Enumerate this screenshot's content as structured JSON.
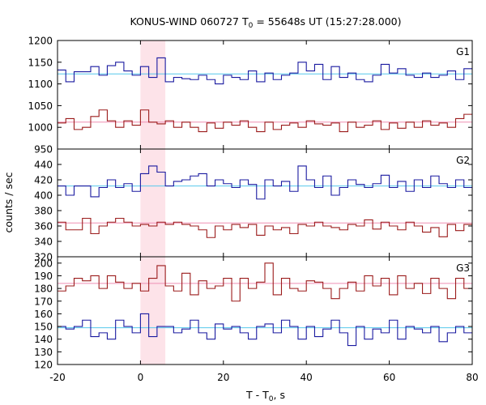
{
  "chart_data": {
    "type": "line",
    "title_prefix": "KONUS-WIND 060727 T",
    "title_sub": "0",
    "title_suffix": " = 55648s UT (15:27:28.000)",
    "xlabel_prefix": "T - T",
    "xlabel_sub": "0",
    "xlabel_suffix": ", s",
    "ylabel": "counts / sec",
    "xlim": [
      -20,
      80
    ],
    "xticks": [
      -20,
      0,
      20,
      40,
      60,
      80
    ],
    "highlight_band": [
      0,
      6
    ],
    "colors": {
      "blue_series": "#1a1aa0",
      "red_series": "#9b1b1b",
      "blue_level": "#56c8ec",
      "red_level": "#ef8fb4",
      "band": "#fde3e9",
      "axis": "#000000"
    },
    "panels": [
      {
        "label": "G1",
        "ylim": [
          950,
          1200
        ],
        "yticks": [
          950,
          1000,
          1050,
          1100,
          1150,
          1200
        ],
        "series": [
          {
            "color": "blue",
            "bin_edges": [
              -20,
              -18,
              -16,
              -14,
              -12,
              -10,
              -8,
              -6,
              -4,
              -2,
              0,
              2,
              4,
              6,
              8,
              10,
              12,
              14,
              16,
              18,
              20,
              22,
              24,
              26,
              28,
              30,
              32,
              34,
              36,
              38,
              40,
              42,
              44,
              46,
              48,
              50,
              52,
              54,
              56,
              58,
              60,
              62,
              64,
              66,
              68,
              70,
              72,
              74,
              76,
              78,
              80
            ],
            "values": [
              1132,
              1105,
              1128,
              1128,
              1140,
              1120,
              1142,
              1150,
              1130,
              1120,
              1140,
              1115,
              1160,
              1105,
              1115,
              1112,
              1110,
              1120,
              1110,
              1100,
              1120,
              1115,
              1110,
              1130,
              1105,
              1125,
              1110,
              1120,
              1125,
              1150,
              1130,
              1145,
              1110,
              1140,
              1115,
              1125,
              1110,
              1105,
              1120,
              1145,
              1125,
              1135,
              1120,
              1115,
              1125,
              1115,
              1120,
              1130,
              1110,
              1135
            ]
          },
          {
            "color": "red",
            "bin_edges": [
              -20,
              -18,
              -16,
              -14,
              -12,
              -10,
              -8,
              -6,
              -4,
              -2,
              0,
              2,
              4,
              6,
              8,
              10,
              12,
              14,
              16,
              18,
              20,
              22,
              24,
              26,
              28,
              30,
              32,
              34,
              36,
              38,
              40,
              42,
              44,
              46,
              48,
              50,
              52,
              54,
              56,
              58,
              60,
              62,
              64,
              66,
              68,
              70,
              72,
              74,
              76,
              78,
              80
            ],
            "values": [
              1010,
              1020,
              995,
              1000,
              1025,
              1040,
              1015,
              1000,
              1015,
              1005,
              1040,
              1012,
              1008,
              1015,
              1000,
              1012,
              1000,
              990,
              1010,
              998,
              1012,
              1005,
              1015,
              1000,
              990,
              1012,
              995,
              1005,
              1010,
              1000,
              1015,
              1008,
              1005,
              1010,
              990,
              1012,
              1000,
              1005,
              1015,
              995,
              1010,
              998,
              1012,
              1000,
              1015,
              1005,
              1010,
              1000,
              1020,
              1030
            ]
          }
        ],
        "levels": [
          {
            "color": "blue",
            "value": 1123
          },
          {
            "color": "red",
            "value": 1012
          }
        ]
      },
      {
        "label": "G2",
        "ylim": [
          320,
          460
        ],
        "yticks": [
          320,
          340,
          360,
          380,
          400,
          420,
          440
        ],
        "series": [
          {
            "color": "blue",
            "bin_edges": [
              -20,
              -18,
              -16,
              -14,
              -12,
              -10,
              -8,
              -6,
              -4,
              -2,
              0,
              2,
              4,
              6,
              8,
              10,
              12,
              14,
              16,
              18,
              20,
              22,
              24,
              26,
              28,
              30,
              32,
              34,
              36,
              38,
              40,
              42,
              44,
              46,
              48,
              50,
              52,
              54,
              56,
              58,
              60,
              62,
              64,
              66,
              68,
              70,
              72,
              74,
              76,
              78,
              80
            ],
            "values": [
              412,
              400,
              412,
              412,
              398,
              410,
              420,
              410,
              415,
              405,
              428,
              438,
              430,
              412,
              418,
              420,
              425,
              428,
              412,
              420,
              415,
              410,
              420,
              414,
              395,
              420,
              412,
              418,
              405,
              438,
              420,
              410,
              425,
              400,
              410,
              420,
              414,
              410,
              415,
              426,
              410,
              418,
              405,
              420,
              410,
              425,
              415,
              410,
              420,
              410
            ]
          },
          {
            "color": "red",
            "bin_edges": [
              -20,
              -18,
              -16,
              -14,
              -12,
              -10,
              -8,
              -6,
              -4,
              -2,
              0,
              2,
              4,
              6,
              8,
              10,
              12,
              14,
              16,
              18,
              20,
              22,
              24,
              26,
              28,
              30,
              32,
              34,
              36,
              38,
              40,
              42,
              44,
              46,
              48,
              50,
              52,
              54,
              56,
              58,
              60,
              62,
              64,
              66,
              68,
              70,
              72,
              74,
              76,
              78,
              80
            ],
            "values": [
              365,
              355,
              355,
              370,
              350,
              360,
              365,
              370,
              365,
              360,
              362,
              360,
              365,
              362,
              365,
              362,
              360,
              355,
              345,
              360,
              355,
              362,
              358,
              362,
              348,
              360,
              355,
              358,
              350,
              362,
              360,
              365,
              360,
              358,
              355,
              362,
              360,
              368,
              356,
              365,
              360,
              355,
              365,
              360,
              352,
              358,
              346,
              362,
              354,
              362
            ]
          }
        ],
        "levels": [
          {
            "color": "blue",
            "value": 412
          },
          {
            "color": "red",
            "value": 364
          }
        ]
      },
      {
        "label": "G3",
        "ylim": [
          120,
          205
        ],
        "yticks": [
          120,
          130,
          140,
          150,
          160,
          170,
          180,
          190,
          200
        ],
        "series": [
          {
            "color": "red",
            "bin_edges": [
              -20,
              -18,
              -16,
              -14,
              -12,
              -10,
              -8,
              -6,
              -4,
              -2,
              0,
              2,
              4,
              6,
              8,
              10,
              12,
              14,
              16,
              18,
              20,
              22,
              24,
              26,
              28,
              30,
              32,
              34,
              36,
              38,
              40,
              42,
              44,
              46,
              48,
              50,
              52,
              54,
              56,
              58,
              60,
              62,
              64,
              66,
              68,
              70,
              72,
              74,
              76,
              78,
              80
            ],
            "values": [
              178,
              182,
              188,
              186,
              190,
              180,
              190,
              185,
              180,
              184,
              178,
              188,
              198,
              182,
              178,
              192,
              175,
              186,
              180,
              182,
              188,
              170,
              188,
              180,
              185,
              200,
              175,
              188,
              180,
              178,
              186,
              185,
              180,
              172,
              180,
              185,
              178,
              190,
              182,
              188,
              175,
              190,
              180,
              184,
              176,
              188,
              180,
              172,
              188,
              180
            ]
          },
          {
            "color": "blue",
            "bin_edges": [
              -20,
              -18,
              -16,
              -14,
              -12,
              -10,
              -8,
              -6,
              -4,
              -2,
              0,
              2,
              4,
              6,
              8,
              10,
              12,
              14,
              16,
              18,
              20,
              22,
              24,
              26,
              28,
              30,
              32,
              34,
              36,
              38,
              40,
              42,
              44,
              46,
              48,
              50,
              52,
              54,
              56,
              58,
              60,
              62,
              64,
              66,
              68,
              70,
              72,
              74,
              76,
              78,
              80
            ],
            "values": [
              150,
              148,
              150,
              155,
              142,
              145,
              140,
              155,
              150,
              145,
              160,
              142,
              150,
              150,
              145,
              148,
              155,
              145,
              140,
              152,
              148,
              150,
              145,
              140,
              150,
              152,
              145,
              155,
              150,
              140,
              150,
              142,
              148,
              155,
              145,
              135,
              150,
              140,
              148,
              145,
              155,
              140,
              150,
              148,
              145,
              150,
              138,
              145,
              150,
              145
            ]
          }
        ],
        "levels": [
          {
            "color": "red",
            "value": 184
          },
          {
            "color": "blue",
            "value": 149
          }
        ]
      }
    ]
  }
}
